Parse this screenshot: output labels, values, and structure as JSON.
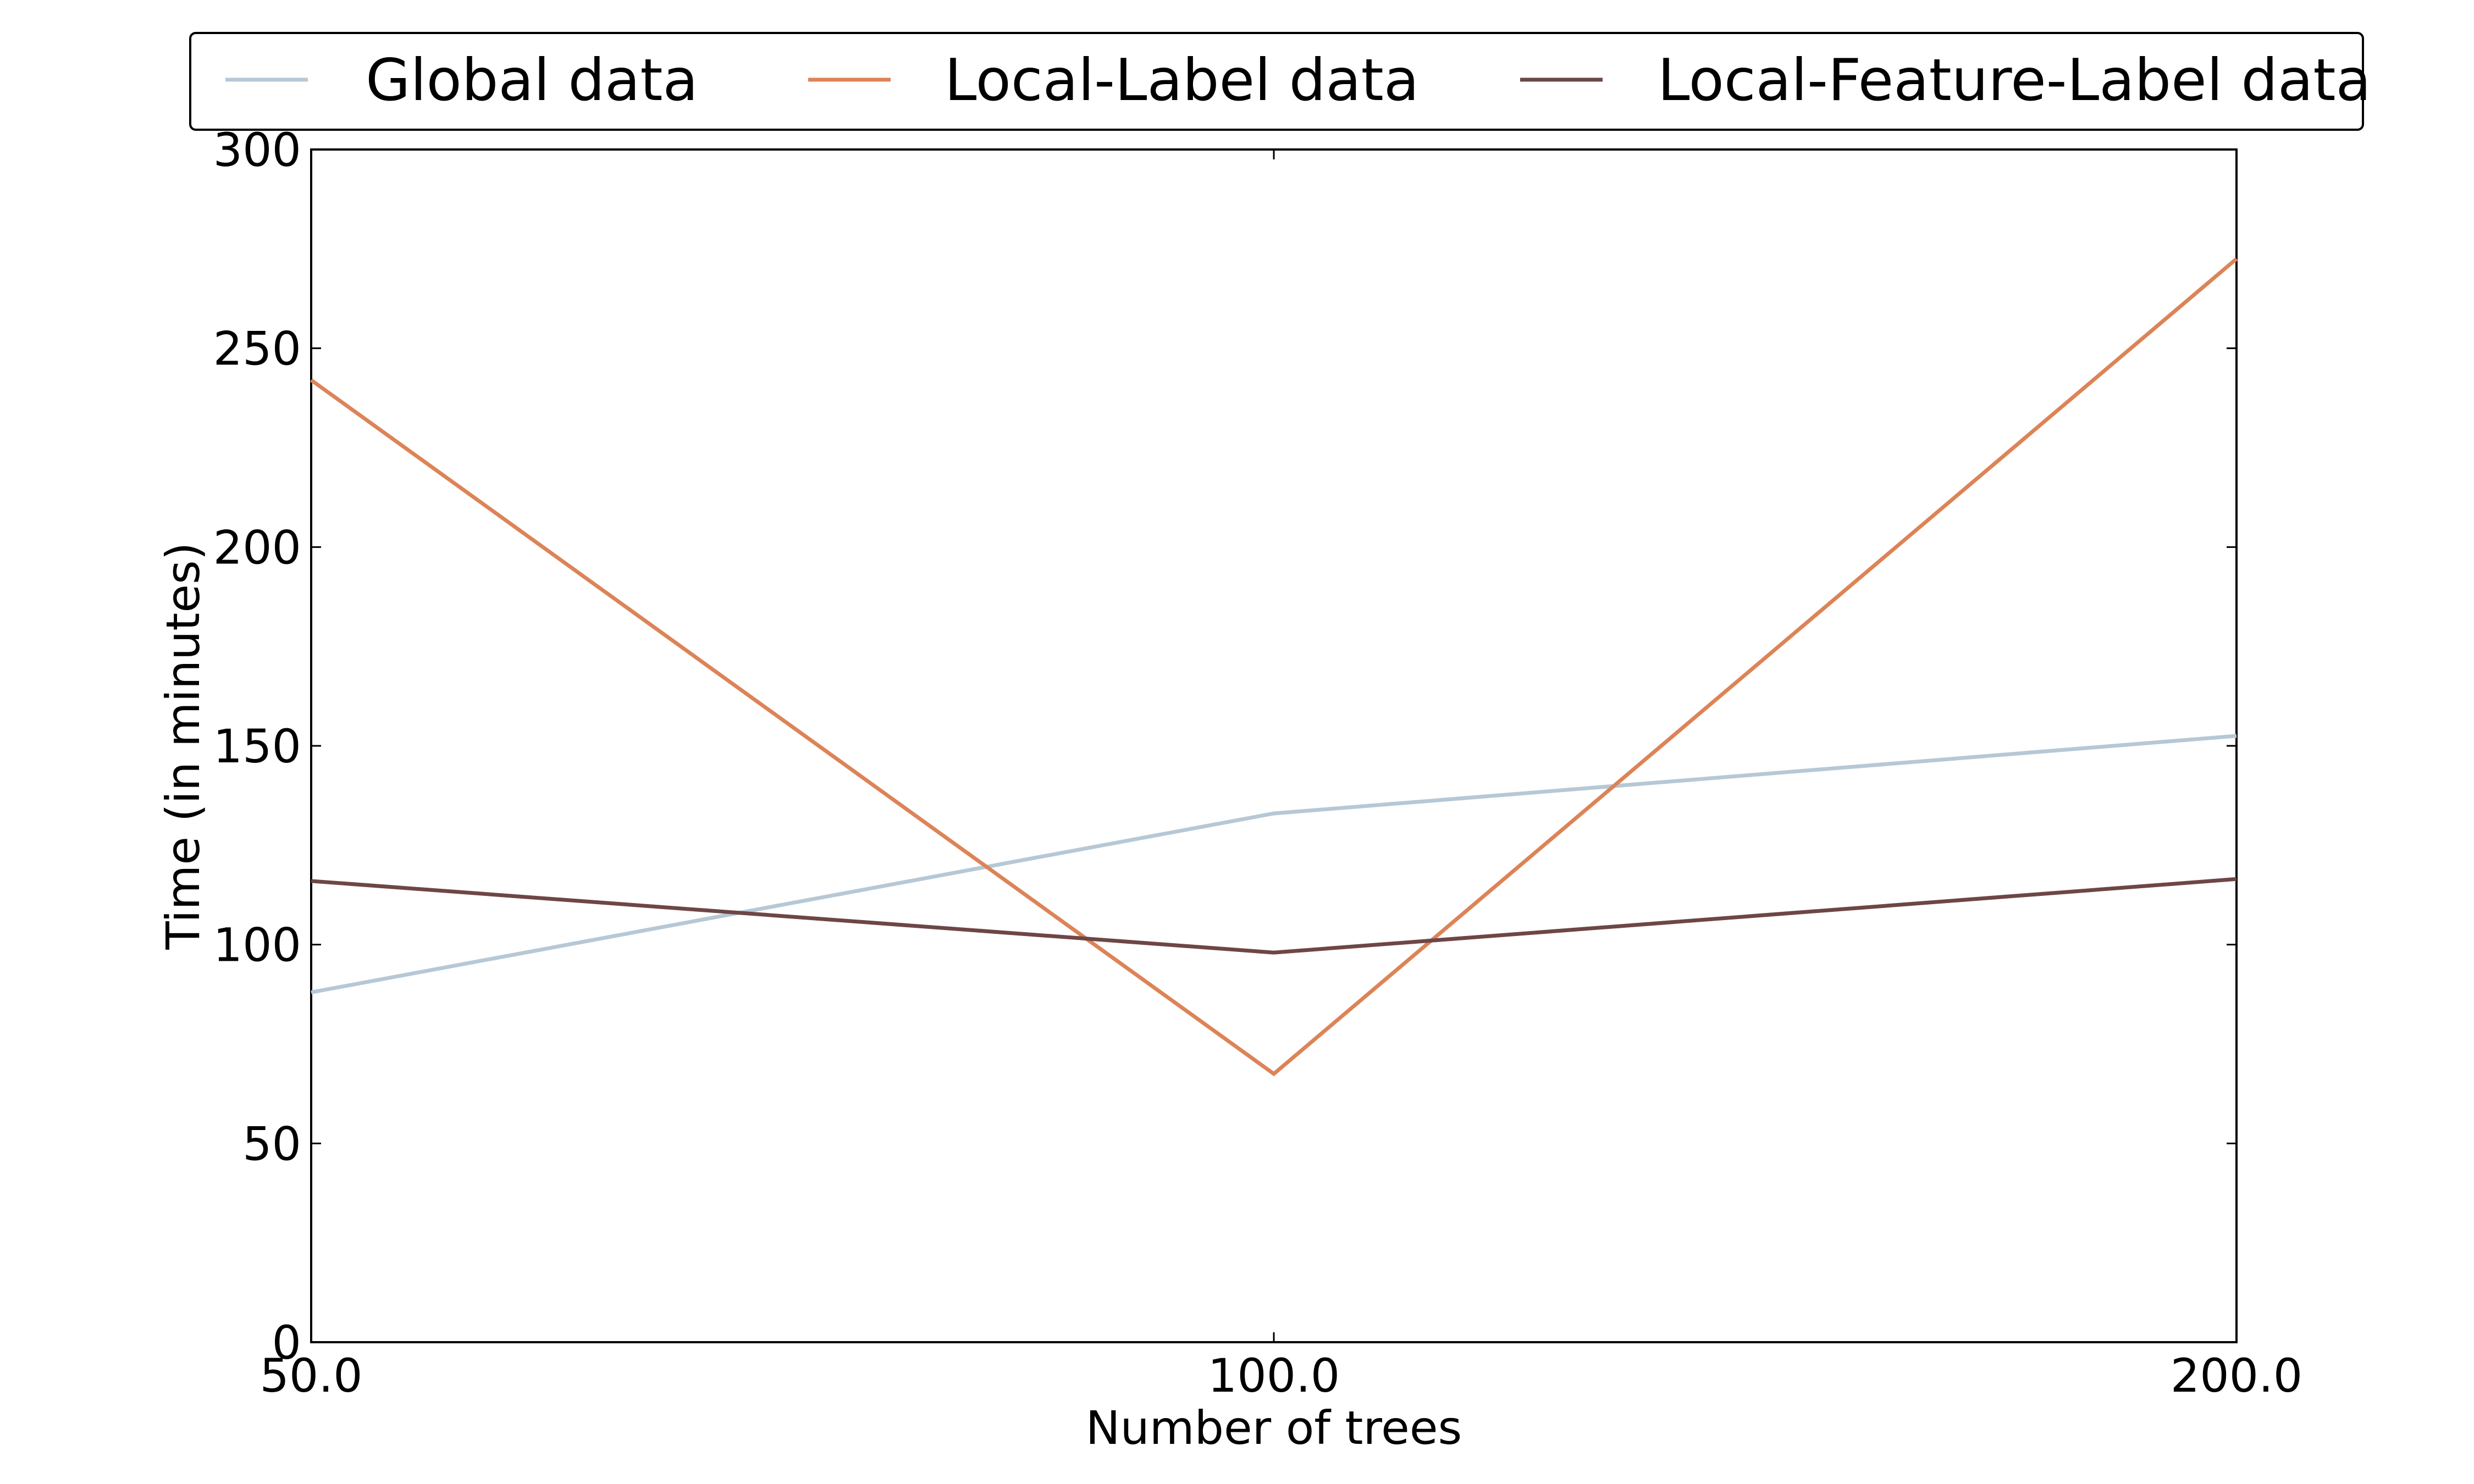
{
  "chart_data": {
    "type": "line",
    "title": "",
    "xlabel": "Number of trees",
    "ylabel": "Time (in minutes)",
    "categories": [
      "50.0",
      "100.0",
      "200.0"
    ],
    "x_tick_labels": [
      "50.0",
      "100.0",
      "200.0"
    ],
    "y_ticks": [
      0,
      50,
      100,
      150,
      200,
      250,
      300
    ],
    "ylim": [
      0,
      300
    ],
    "grid": false,
    "legend_position": "top-center",
    "series": [
      {
        "name": "Global data",
        "color": "#b6c8d6",
        "values": [
          88,
          133,
          152.5
        ]
      },
      {
        "name": "Local-Label data",
        "color": "#dc8457",
        "values": [
          242,
          67.5,
          272.5
        ]
      },
      {
        "name": "Local-Feature-Label data",
        "color": "#6e4646",
        "values": [
          116,
          98,
          116.5
        ]
      }
    ]
  }
}
